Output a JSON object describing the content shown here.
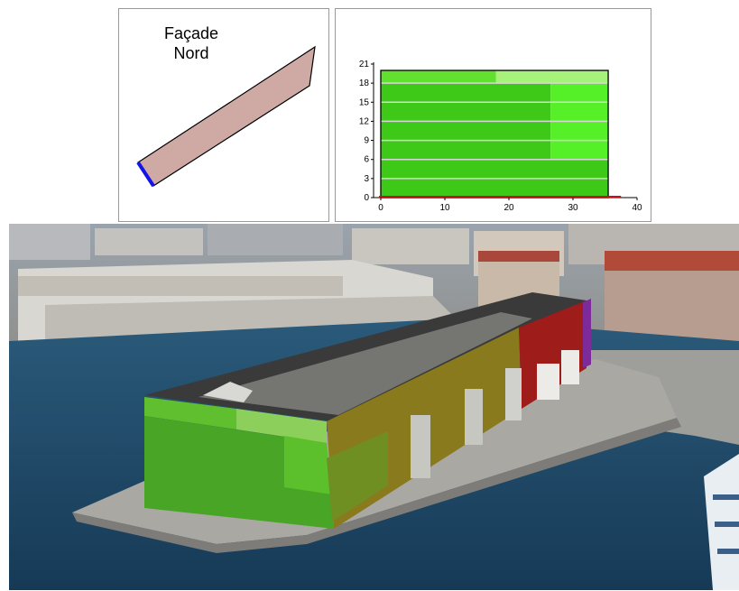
{
  "plan_panel": {
    "title_line1": "Façade",
    "title_line2": "Nord"
  },
  "chart_data": {
    "type": "bar",
    "title": "",
    "xlabel": "",
    "ylabel": "",
    "x_ticks": [
      "0",
      "10",
      "20",
      "30",
      "40"
    ],
    "y_ticks": [
      "0",
      "3",
      "6",
      "9",
      "12",
      "15",
      "18",
      "21"
    ],
    "xlim": [
      0,
      40
    ],
    "ylim": [
      0,
      21
    ],
    "facade_width": 35.5,
    "facade_height": 20,
    "zones": [
      {
        "x0": 0,
        "x1": 35.5,
        "y0": 0,
        "y1": 6,
        "color": "#3ec817"
      },
      {
        "x0": 0,
        "x1": 26.5,
        "y0": 6,
        "y1": 18,
        "color": "#3ec817"
      },
      {
        "x0": 26.5,
        "x1": 35.5,
        "y0": 6,
        "y1": 18,
        "color": "#56f028"
      },
      {
        "x0": 0,
        "x1": 18,
        "y0": 18,
        "y1": 20,
        "color": "#62e030"
      },
      {
        "x0": 18,
        "x1": 35.5,
        "y0": 18,
        "y1": 20,
        "color": "#a6f27a"
      }
    ],
    "floor_lines": [
      3,
      6,
      9,
      12,
      15,
      18
    ],
    "grid": false
  },
  "colors": {
    "plan_fill": "#cfaaa4",
    "highlight_edge": "#1414e6",
    "ground_line": "#c0161a",
    "water": "#1f4e6e",
    "roof": "#3a3a3a",
    "facade_green": "#4da82a",
    "facade_ochre": "#8a7a1e",
    "facade_red": "#9e1c1a"
  }
}
